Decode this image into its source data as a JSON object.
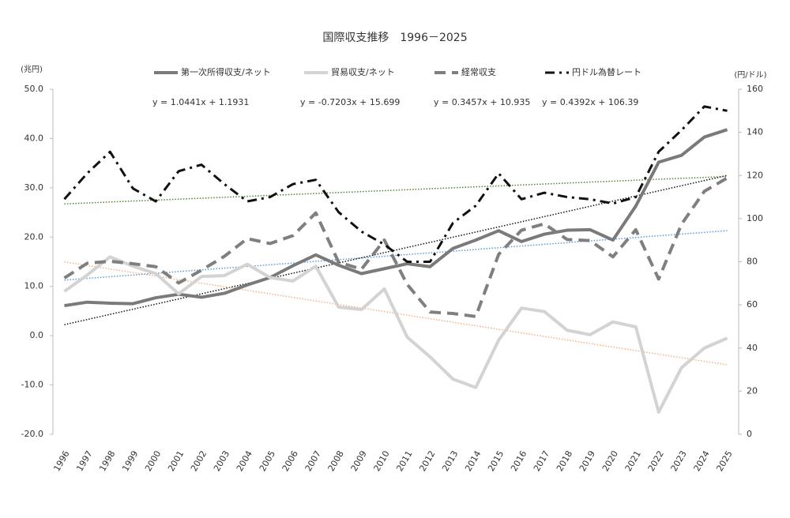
{
  "chart_data": {
    "type": "line",
    "title": "国際収支推移　1996－2025",
    "y_label": "(兆円)",
    "y2_label": "(円/ドル)",
    "categories": [
      "1996",
      "1997",
      "1998",
      "1999",
      "2000",
      "2001",
      "2002",
      "2003",
      "2004",
      "2005",
      "2006",
      "2007",
      "2008",
      "2009",
      "2010",
      "2011",
      "2012",
      "2013",
      "2014",
      "2015",
      "2016",
      "2017",
      "2018",
      "2019",
      "2020",
      "2021",
      "2022",
      "2023",
      "2024",
      "2025"
    ],
    "ylim": [
      -20,
      50
    ],
    "yticks": [
      {
        "value": -20,
        "label": "-20.0"
      },
      {
        "value": -10,
        "label": "-10.0"
      },
      {
        "value": 0,
        "label": "0.0"
      },
      {
        "value": 10,
        "label": "10.0"
      },
      {
        "value": 20,
        "label": "20.0"
      },
      {
        "value": 30,
        "label": "30.0"
      },
      {
        "value": 40,
        "label": "40.0"
      },
      {
        "value": 50,
        "label": "50.0"
      }
    ],
    "y2lim": [
      0,
      160
    ],
    "y2ticks": [
      0,
      20,
      40,
      60,
      80,
      100,
      120,
      140,
      160
    ],
    "series": [
      {
        "name": "第一次所得収支/ネット",
        "color": "#7a7a7a",
        "dash": "solid",
        "width": 4,
        "values": [
          6.1,
          6.8,
          6.6,
          6.5,
          7.7,
          8.4,
          7.8,
          8.6,
          10.3,
          11.8,
          14.2,
          16.4,
          14.3,
          12.6,
          13.6,
          14.6,
          14.0,
          17.7,
          19.4,
          21.3,
          19.1,
          20.6,
          21.4,
          21.5,
          19.4,
          26.3,
          35.2,
          36.6,
          40.3,
          41.8
        ]
      },
      {
        "name": "貿易収支/ネット",
        "color": "#d3d3d3",
        "dash": "solid",
        "width": 4,
        "values": [
          9.0,
          12.3,
          16.0,
          14.1,
          12.6,
          8.5,
          12.0,
          12.2,
          14.5,
          11.8,
          11.1,
          14.1,
          5.8,
          5.3,
          9.5,
          -0.3,
          -4.3,
          -8.8,
          -10.5,
          -0.9,
          5.6,
          4.9,
          1.1,
          0.2,
          2.8,
          1.8,
          -15.5,
          -6.5,
          -2.5,
          -0.5
        ]
      },
      {
        "name": "経常収支",
        "color": "#7f7f7f",
        "dash": "dashed",
        "width": 4,
        "values": [
          11.7,
          14.7,
          15.1,
          14.6,
          14.0,
          10.7,
          13.3,
          16.1,
          19.7,
          18.7,
          20.3,
          24.9,
          14.9,
          13.5,
          19.4,
          10.4,
          4.8,
          4.5,
          3.9,
          16.5,
          21.4,
          22.7,
          19.5,
          19.3,
          16.0,
          21.5,
          11.5,
          22.6,
          29.3,
          32.0
        ]
      },
      {
        "name": "円ドル為替レート",
        "color": "#111111",
        "dash": "dashdot",
        "width": 3,
        "axis": "y2",
        "values": [
          109,
          121,
          131,
          114,
          108,
          122,
          125,
          116,
          108,
          110,
          116,
          118,
          103,
          94,
          88,
          80,
          80,
          98,
          106,
          121,
          109,
          112,
          110,
          109,
          107,
          110,
          131,
          141,
          152,
          150
        ]
      }
    ],
    "trendlines": [
      {
        "label": "y = 1.0441x + 1.1931",
        "slope": 1.0441,
        "intercept": 1.1931,
        "color": "#111111"
      },
      {
        "label": "y = -0.7203x + 15.699",
        "slope": -0.7203,
        "intercept": 15.699,
        "color": "#f4b183"
      },
      {
        "label": "y = 0.3457x + 10.935",
        "slope": 0.3457,
        "intercept": 10.935,
        "color": "#5b9bd5"
      },
      {
        "label": "y = 0.4392x + 106.39",
        "slope": 0.4392,
        "intercept": 106.39,
        "color": "#548235",
        "axis": "y2"
      }
    ]
  }
}
